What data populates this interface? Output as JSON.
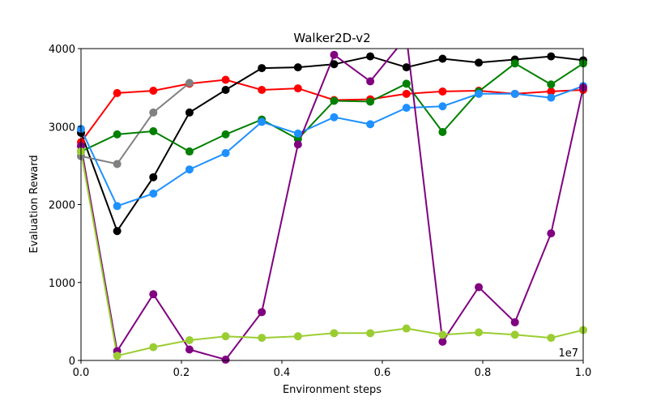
{
  "chart_data": {
    "type": "line",
    "title": "Walker2D-v2",
    "xlabel": "Environment steps",
    "ylabel": "Evaluation Reward",
    "x_offset_label": "1e7",
    "xlim": [
      0,
      1.0
    ],
    "ylim": [
      0,
      4000
    ],
    "xticks": [
      "0.0",
      "0.2",
      "0.4",
      "0.6",
      "0.8",
      "1.0"
    ],
    "yticks": [
      "0",
      "1000",
      "2000",
      "3000",
      "4000"
    ],
    "grid": false,
    "x": [
      0,
      0.072,
      0.144,
      0.216,
      0.288,
      0.36,
      0.432,
      0.504,
      0.576,
      0.648,
      0.72,
      0.792,
      0.864,
      0.936,
      1.0
    ],
    "series": [
      {
        "color": "#ff0000",
        "x": [
          0,
          0.072,
          0.144,
          0.216,
          0.288,
          0.36,
          0.432,
          0.504,
          0.576,
          0.648,
          0.72,
          0.792,
          0.864,
          0.936,
          1.0
        ],
        "values": [
          2800,
          3430,
          3460,
          3550,
          3600,
          3470,
          3490,
          3340,
          3350,
          3420,
          3450,
          3460,
          3420,
          3450,
          3470
        ]
      },
      {
        "color": "#000000",
        "x": [
          0,
          0.072,
          0.144,
          0.216,
          0.288,
          0.36,
          0.432,
          0.504,
          0.576,
          0.648,
          0.72,
          0.792,
          0.864,
          0.936,
          1.0
        ],
        "values": [
          2920,
          1660,
          2350,
          3180,
          3470,
          3750,
          3760,
          3800,
          3900,
          3760,
          3870,
          3820,
          3860,
          3900,
          3850
        ]
      },
      {
        "color": "#808080",
        "x": [
          0,
          0.072,
          0.144,
          0.216
        ],
        "values": [
          2620,
          2520,
          3180,
          3560
        ]
      },
      {
        "color": "#008000",
        "x": [
          0,
          0.072,
          0.144,
          0.216,
          0.288,
          0.36,
          0.432,
          0.504,
          0.576,
          0.648,
          0.72,
          0.792,
          0.864,
          0.936,
          1.0
        ],
        "values": [
          2680,
          2900,
          2940,
          2680,
          2900,
          3090,
          2840,
          3330,
          3320,
          3550,
          2930,
          3450,
          3810,
          3540,
          3810
        ]
      },
      {
        "color": "#1e90ff",
        "x": [
          0,
          0.072,
          0.144,
          0.216,
          0.288,
          0.36,
          0.432,
          0.504,
          0.576,
          0.648,
          0.72,
          0.792,
          0.864,
          0.936,
          1.0
        ],
        "values": [
          2970,
          1980,
          2140,
          2450,
          2660,
          3060,
          2910,
          3120,
          3030,
          3240,
          3260,
          3420,
          3420,
          3370,
          3520
        ]
      },
      {
        "color": "#800080",
        "x": [
          0,
          0.072,
          0.144,
          0.216,
          0.288,
          0.36,
          0.432,
          0.504,
          0.576,
          0.648,
          0.72,
          0.792,
          0.864,
          0.936,
          1.0
        ],
        "values": [
          2750,
          120,
          850,
          140,
          10,
          620,
          2770,
          3920,
          3580,
          4150,
          240,
          940,
          490,
          1630,
          3500
        ]
      },
      {
        "color": "#9acd32",
        "x": [
          0,
          0.072,
          0.144,
          0.216,
          0.288,
          0.36,
          0.432,
          0.504,
          0.576,
          0.648,
          0.72,
          0.792,
          0.864,
          0.936,
          1.0
        ],
        "values": [
          2680,
          60,
          170,
          260,
          310,
          290,
          310,
          350,
          350,
          410,
          330,
          360,
          330,
          290,
          390
        ]
      }
    ]
  }
}
